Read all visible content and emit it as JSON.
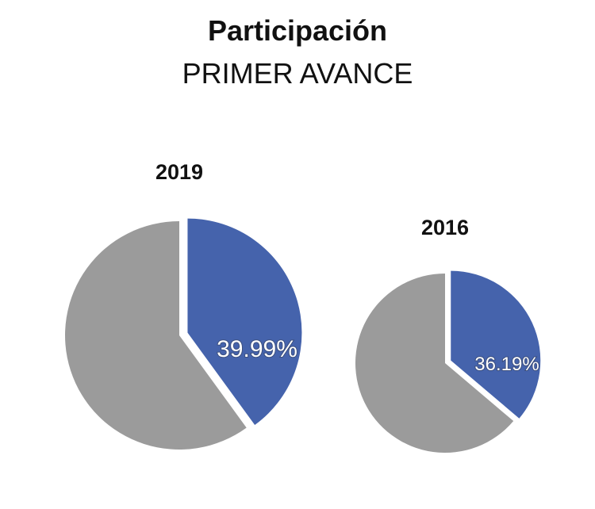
{
  "header": {
    "title": "Participación",
    "subtitle": "PRIMER AVANCE"
  },
  "colors": {
    "highlight": "#4563AC",
    "rest": "#9B9B9B"
  },
  "chart_data": [
    {
      "type": "pie",
      "title": "2019",
      "slices": [
        {
          "label": "39.99%",
          "value": 39.99,
          "color": "#4563AC",
          "exploded": true
        },
        {
          "label": "",
          "value": 60.01,
          "color": "#9B9B9B",
          "exploded": false
        }
      ]
    },
    {
      "type": "pie",
      "title": "2016",
      "slices": [
        {
          "label": "36.19%",
          "value": 36.19,
          "color": "#4563AC",
          "exploded": true
        },
        {
          "label": "",
          "value": 63.81,
          "color": "#9B9B9B",
          "exploded": false
        }
      ]
    }
  ]
}
